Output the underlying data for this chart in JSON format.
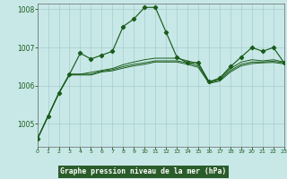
{
  "title": "Graphe pression niveau de la mer (hPa)",
  "bg_color": "#c8e8e8",
  "plot_bg": "#c8e8e8",
  "grid_color": "#a8cccc",
  "line_color": "#1a5c1a",
  "xlabel_bg": "#2a5c2a",
  "xlabel_fg": "#c8e8e8",
  "xlim": [
    0,
    23
  ],
  "ylim": [
    1004.4,
    1008.15
  ],
  "yticks": [
    1005,
    1006,
    1007,
    1008
  ],
  "xticks": [
    0,
    1,
    2,
    3,
    4,
    5,
    6,
    7,
    8,
    9,
    10,
    11,
    12,
    13,
    14,
    15,
    16,
    17,
    18,
    19,
    20,
    21,
    22,
    23
  ],
  "s0": [
    1004.6,
    1005.2,
    1005.8,
    1006.3,
    1006.85,
    1006.7,
    1006.8,
    1006.9,
    1007.55,
    1007.75,
    1008.05,
    1008.05,
    1007.4,
    1006.75,
    1006.6,
    1006.6,
    1006.1,
    1006.2,
    1006.5,
    1006.75,
    1007.0,
    1006.9,
    1007.0,
    1006.6
  ],
  "s1": [
    1004.6,
    1005.2,
    1005.8,
    1006.3,
    1006.3,
    1006.35,
    1006.4,
    1006.45,
    1006.55,
    1006.62,
    1006.68,
    1006.72,
    1006.72,
    1006.72,
    1006.65,
    1006.58,
    1006.1,
    1006.18,
    1006.45,
    1006.62,
    1006.68,
    1006.65,
    1006.68,
    1006.62
  ],
  "s2": [
    1004.6,
    1005.2,
    1005.8,
    1006.3,
    1006.3,
    1006.3,
    1006.38,
    1006.42,
    1006.5,
    1006.56,
    1006.6,
    1006.65,
    1006.65,
    1006.65,
    1006.6,
    1006.52,
    1006.08,
    1006.15,
    1006.4,
    1006.56,
    1006.62,
    1006.62,
    1006.64,
    1006.6
  ],
  "s3": [
    1004.6,
    1005.2,
    1005.8,
    1006.28,
    1006.28,
    1006.28,
    1006.36,
    1006.39,
    1006.46,
    1006.52,
    1006.56,
    1006.62,
    1006.62,
    1006.62,
    1006.56,
    1006.48,
    1006.06,
    1006.12,
    1006.36,
    1006.52,
    1006.58,
    1006.6,
    1006.61,
    1006.57
  ]
}
